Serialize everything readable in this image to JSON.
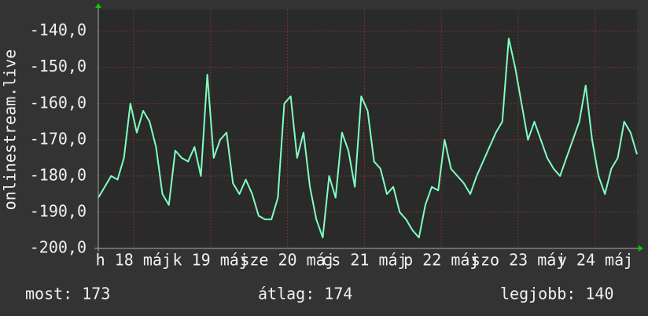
{
  "chart_data": {
    "type": "line",
    "y_label": "onlinestream.live",
    "x": [
      0,
      2,
      4,
      6,
      8,
      10,
      12,
      14,
      16,
      18,
      20,
      22,
      24,
      26,
      28,
      30,
      32,
      34,
      36,
      38,
      40,
      42,
      44,
      46,
      48,
      50,
      52,
      54,
      56,
      58,
      60,
      62,
      64,
      66,
      68,
      70,
      72,
      74,
      76,
      78,
      80,
      82,
      84,
      86,
      88,
      90,
      92,
      94,
      96,
      98,
      100,
      102,
      104,
      106,
      108,
      110,
      112,
      114,
      116,
      118,
      120,
      122,
      124,
      126,
      128,
      130,
      132,
      134,
      136,
      138,
      140,
      142,
      144,
      146,
      148,
      150,
      152,
      154,
      156,
      158,
      160,
      162,
      164,
      166,
      168
    ],
    "series": [
      {
        "name": "onlinestream.live",
        "color": "#80ffc0",
        "values": [
          -186,
          -183,
          -180,
          -181,
          -175,
          -160,
          -168,
          -162,
          -165,
          -172,
          -185,
          -188,
          -173,
          -175,
          -176,
          -172,
          -180,
          -152,
          -175,
          -170,
          -168,
          -182,
          -185,
          -181,
          -185,
          -191,
          -192,
          -192,
          -186,
          -160,
          -158,
          -175,
          -168,
          -183,
          -192,
          -197,
          -180,
          -186,
          -168,
          -173,
          -183,
          -158,
          -162,
          -176,
          -178,
          -185,
          -183,
          -190,
          -192,
          -195,
          -197,
          -188,
          -183,
          -184,
          -170,
          -178,
          -180,
          -182,
          -185,
          -180,
          -176,
          -172,
          -168,
          -165,
          -142,
          -150,
          -160,
          -170,
          -165,
          -170,
          -175,
          -178,
          -180,
          -175,
          -170,
          -165,
          -155,
          -170,
          -180,
          -185,
          -178,
          -175,
          -165,
          -168,
          -174
        ]
      }
    ],
    "xlim": [
      0,
      168
    ],
    "xticks": [
      {
        "value": 11,
        "label": "h 18 máj"
      },
      {
        "value": 35,
        "label": "k 19 máj"
      },
      {
        "value": 59,
        "label": "sze 20 máj"
      },
      {
        "value": 83,
        "label": "cs 21 máj"
      },
      {
        "value": 107,
        "label": "p 22 máj"
      },
      {
        "value": 131,
        "label": "szo 23 máj"
      },
      {
        "value": 155,
        "label": "v 24 máj"
      }
    ],
    "ylim": [
      -200,
      -134
    ],
    "yticks": [
      {
        "value": -200,
        "label": "-200,0"
      },
      {
        "value": -190,
        "label": "-190,0"
      },
      {
        "value": -180,
        "label": "-180,0"
      },
      {
        "value": -170,
        "label": "-170,0"
      },
      {
        "value": -160,
        "label": "-160,0"
      },
      {
        "value": -150,
        "label": "-150,0"
      },
      {
        "value": -140,
        "label": "-140,0"
      }
    ],
    "grid": true,
    "footer": [
      "most: 173",
      "átlag: 174",
      "legjobb: 140"
    ]
  }
}
